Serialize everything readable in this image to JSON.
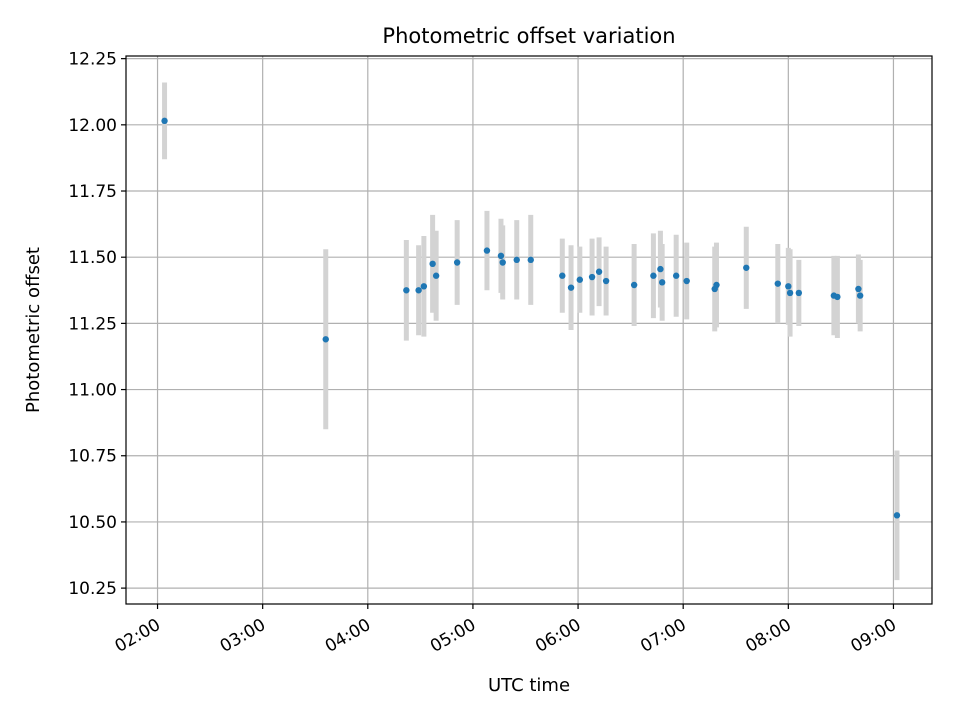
{
  "chart_data": {
    "type": "scatter",
    "title": "Photometric offset variation",
    "xlabel": "UTC time",
    "ylabel": "Photometric offset",
    "x_ticks": [
      "02:00",
      "03:00",
      "04:00",
      "05:00",
      "06:00",
      "07:00",
      "08:00",
      "09:00"
    ],
    "y_ticks": [
      "10.25",
      "10.50",
      "10.75",
      "11.00",
      "11.25",
      "11.50",
      "11.75",
      "12.00",
      "12.25"
    ],
    "xlim": [
      "01:42",
      "09:22"
    ],
    "ylim": [
      10.19,
      12.26
    ],
    "grid": true,
    "colors": {
      "point": "#1f77b4",
      "errorbar": "#d3d3d3",
      "grid": "#b0b0b0"
    },
    "series": [
      {
        "points": [
          {
            "x": "02:04",
            "y": 12.015,
            "err": 0.145
          },
          {
            "x": "03:36",
            "y": 11.19,
            "err": 0.34
          },
          {
            "x": "04:22",
            "y": 11.375,
            "err": 0.19
          },
          {
            "x": "04:29",
            "y": 11.375,
            "err": 0.17
          },
          {
            "x": "04:32",
            "y": 11.39,
            "err": 0.19
          },
          {
            "x": "04:37",
            "y": 11.475,
            "err": 0.185
          },
          {
            "x": "04:39",
            "y": 11.43,
            "err": 0.17
          },
          {
            "x": "04:51",
            "y": 11.48,
            "err": 0.16
          },
          {
            "x": "05:08",
            "y": 11.525,
            "err": 0.15
          },
          {
            "x": "05:16",
            "y": 11.505,
            "err": 0.14
          },
          {
            "x": "05:17",
            "y": 11.48,
            "err": 0.14
          },
          {
            "x": "05:25",
            "y": 11.49,
            "err": 0.15
          },
          {
            "x": "05:33",
            "y": 11.49,
            "err": 0.17
          },
          {
            "x": "05:51",
            "y": 11.43,
            "err": 0.14
          },
          {
            "x": "05:56",
            "y": 11.385,
            "err": 0.16
          },
          {
            "x": "06:01",
            "y": 11.415,
            "err": 0.125
          },
          {
            "x": "06:08",
            "y": 11.425,
            "err": 0.145
          },
          {
            "x": "06:12",
            "y": 11.445,
            "err": 0.13
          },
          {
            "x": "06:16",
            "y": 11.41,
            "err": 0.13
          },
          {
            "x": "06:32",
            "y": 11.395,
            "err": 0.155
          },
          {
            "x": "06:43",
            "y": 11.43,
            "err": 0.16
          },
          {
            "x": "06:47",
            "y": 11.455,
            "err": 0.145
          },
          {
            "x": "06:48",
            "y": 11.405,
            "err": 0.145
          },
          {
            "x": "06:56",
            "y": 11.43,
            "err": 0.155
          },
          {
            "x": "07:02",
            "y": 11.41,
            "err": 0.145
          },
          {
            "x": "07:18",
            "y": 11.38,
            "err": 0.16
          },
          {
            "x": "07:19",
            "y": 11.395,
            "err": 0.16
          },
          {
            "x": "07:36",
            "y": 11.46,
            "err": 0.155
          },
          {
            "x": "07:54",
            "y": 11.4,
            "err": 0.15
          },
          {
            "x": "08:00",
            "y": 11.39,
            "err": 0.145
          },
          {
            "x": "08:01",
            "y": 11.365,
            "err": 0.165
          },
          {
            "x": "08:06",
            "y": 11.365,
            "err": 0.125
          },
          {
            "x": "08:26",
            "y": 11.355,
            "err": 0.15
          },
          {
            "x": "08:28",
            "y": 11.35,
            "err": 0.155
          },
          {
            "x": "08:40",
            "y": 11.38,
            "err": 0.13
          },
          {
            "x": "08:41",
            "y": 11.355,
            "err": 0.135
          },
          {
            "x": "09:02",
            "y": 10.525,
            "err": 0.245
          }
        ]
      }
    ]
  }
}
